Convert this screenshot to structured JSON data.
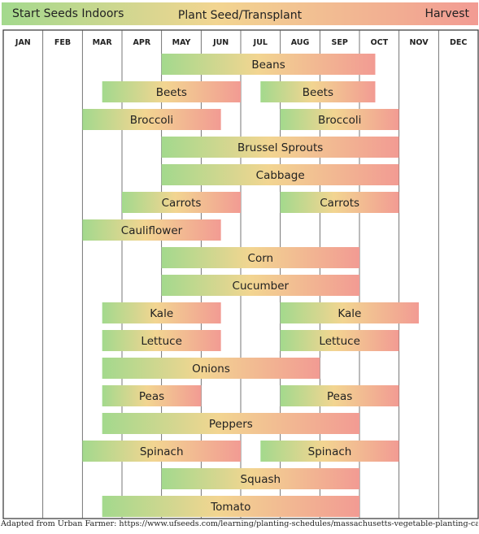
{
  "legend": {
    "start_label": "Start Seeds Indoors",
    "middle_label": "Plant Seed/Transplant",
    "end_label": "Harvest",
    "gradient_colors": [
      "#a3d98d",
      "#f2d591",
      "#f29b93"
    ]
  },
  "colors": {
    "grid": "#555555",
    "frame": "#333333",
    "text": "#222222"
  },
  "chart_data": {
    "type": "bar",
    "months": [
      "JAN",
      "FEB",
      "MAR",
      "APR",
      "MAY",
      "JUN",
      "JUL",
      "AUG",
      "SEP",
      "OCT",
      "NOV",
      "DEC"
    ],
    "crops": [
      {
        "name": "Beans",
        "periods": [
          [
            4.0,
            9.4
          ]
        ]
      },
      {
        "name": "Beets",
        "periods": [
          [
            2.5,
            6.0
          ],
          [
            6.5,
            9.4
          ]
        ]
      },
      {
        "name": "Broccoli",
        "periods": [
          [
            2.0,
            5.5
          ],
          [
            7.0,
            10.0
          ]
        ]
      },
      {
        "name": "Brussel Sprouts",
        "periods": [
          [
            4.0,
            10.0
          ]
        ]
      },
      {
        "name": "Cabbage",
        "periods": [
          [
            4.0,
            10.0
          ]
        ]
      },
      {
        "name": "Carrots",
        "periods": [
          [
            3.0,
            6.0
          ],
          [
            7.0,
            10.0
          ]
        ]
      },
      {
        "name": "Cauliflower",
        "periods": [
          [
            2.0,
            5.5
          ]
        ]
      },
      {
        "name": "Corn",
        "periods": [
          [
            4.0,
            9.0
          ]
        ]
      },
      {
        "name": "Cucumber",
        "periods": [
          [
            4.0,
            9.0
          ]
        ]
      },
      {
        "name": "Kale",
        "periods": [
          [
            2.5,
            5.5
          ],
          [
            7.0,
            10.5
          ]
        ]
      },
      {
        "name": "Lettuce",
        "periods": [
          [
            2.5,
            5.5
          ],
          [
            7.0,
            10.0
          ]
        ]
      },
      {
        "name": "Onions",
        "periods": [
          [
            2.5,
            8.0
          ]
        ]
      },
      {
        "name": "Peas",
        "periods": [
          [
            2.5,
            5.0
          ],
          [
            7.0,
            10.0
          ]
        ]
      },
      {
        "name": "Peppers",
        "periods": [
          [
            2.5,
            9.0
          ]
        ]
      },
      {
        "name": "Spinach",
        "periods": [
          [
            2.0,
            6.0
          ],
          [
            6.5,
            10.0
          ]
        ]
      },
      {
        "name": "Squash",
        "periods": [
          [
            4.0,
            9.0
          ]
        ]
      },
      {
        "name": "Tomato",
        "periods": [
          [
            2.5,
            9.0
          ]
        ]
      }
    ]
  },
  "footnote": "Adapted from Urban Farmer:  https://www.ufseeds.com/learning/planting-schedules/massachusetts-vegetable-planting-calendar/"
}
